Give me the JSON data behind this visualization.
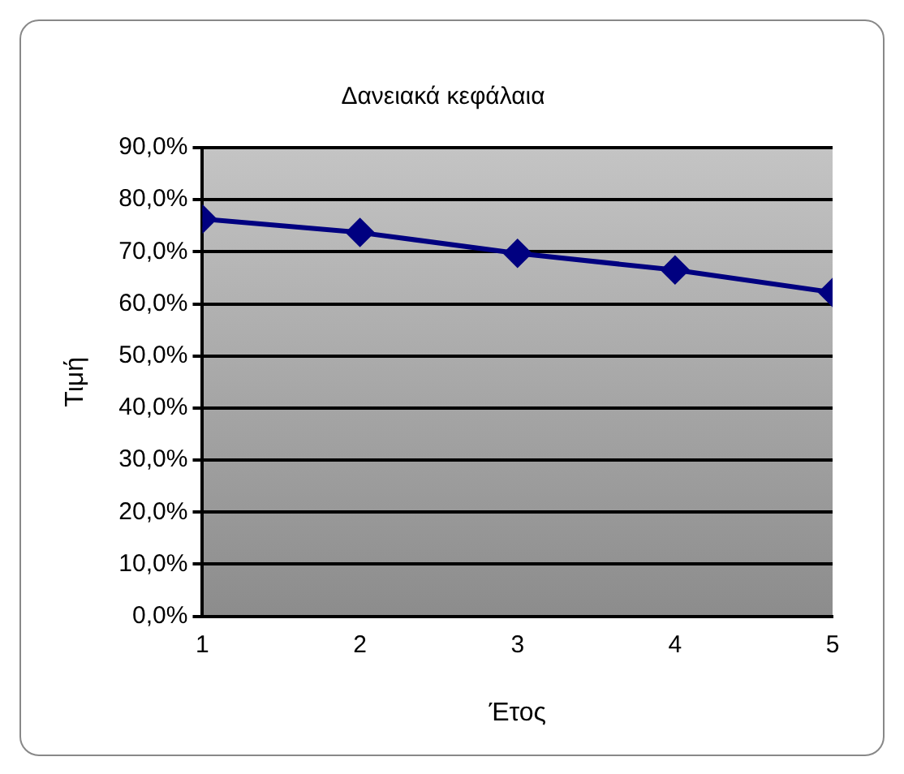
{
  "chart_data": {
    "type": "line",
    "title": "Δανειακά κεφάλαια",
    "xlabel": "Έτος",
    "ylabel": "Τιμή",
    "x": [
      1,
      2,
      3,
      4,
      5
    ],
    "series": [
      {
        "color": "#000080",
        "values": [
          76.3,
          73.7,
          69.7,
          66.5,
          62.2
        ]
      }
    ],
    "xlim": [
      1,
      5
    ],
    "xticks": [
      1,
      2,
      3,
      4,
      5
    ],
    "ylim": [
      0,
      90
    ],
    "yticks": [
      {
        "value": 0,
        "label": "0,0%"
      },
      {
        "value": 10,
        "label": "10,0%"
      },
      {
        "value": 20,
        "label": "20,0%"
      },
      {
        "value": 30,
        "label": "30,0%"
      },
      {
        "value": 40,
        "label": "40,0%"
      },
      {
        "value": 50,
        "label": "50,0%"
      },
      {
        "value": 60,
        "label": "60,0%"
      },
      {
        "value": 70,
        "label": "70,0%"
      },
      {
        "value": 80,
        "label": "80,0%"
      },
      {
        "value": 90,
        "label": "90,0%"
      }
    ],
    "grid": "y",
    "legend": false,
    "marker": "diamond",
    "line_style": "solid"
  }
}
